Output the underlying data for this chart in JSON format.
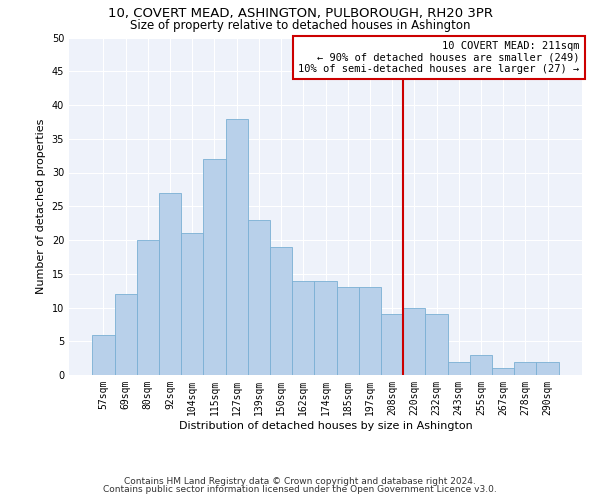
{
  "title1": "10, COVERT MEAD, ASHINGTON, PULBOROUGH, RH20 3PR",
  "title2": "Size of property relative to detached houses in Ashington",
  "xlabel": "Distribution of detached houses by size in Ashington",
  "ylabel": "Number of detached properties",
  "bar_labels": [
    "57sqm",
    "69sqm",
    "80sqm",
    "92sqm",
    "104sqm",
    "115sqm",
    "127sqm",
    "139sqm",
    "150sqm",
    "162sqm",
    "174sqm",
    "185sqm",
    "197sqm",
    "208sqm",
    "220sqm",
    "232sqm",
    "243sqm",
    "255sqm",
    "267sqm",
    "278sqm",
    "290sqm"
  ],
  "bar_values": [
    6,
    12,
    20,
    27,
    21,
    32,
    38,
    23,
    19,
    14,
    14,
    13,
    13,
    9,
    10,
    9,
    2,
    3,
    1,
    2,
    2
  ],
  "bar_color": "#b8d0ea",
  "bar_edge_color": "#7aafd4",
  "vline_x_index": 13,
  "vline_color": "#cc0000",
  "annotation_text": "10 COVERT MEAD: 211sqm\n← 90% of detached houses are smaller (249)\n10% of semi-detached houses are larger (27) →",
  "annotation_box_color": "#cc0000",
  "ylim": [
    0,
    50
  ],
  "yticks": [
    0,
    5,
    10,
    15,
    20,
    25,
    30,
    35,
    40,
    45,
    50
  ],
  "bg_color": "#eef2fa",
  "footer_line1": "Contains HM Land Registry data © Crown copyright and database right 2024.",
  "footer_line2": "Contains public sector information licensed under the Open Government Licence v3.0.",
  "title1_fontsize": 9.5,
  "title2_fontsize": 8.5,
  "ylabel_fontsize": 8,
  "xlabel_fontsize": 8,
  "tick_fontsize": 7,
  "annotation_fontsize": 7.5,
  "footer_fontsize": 6.5
}
